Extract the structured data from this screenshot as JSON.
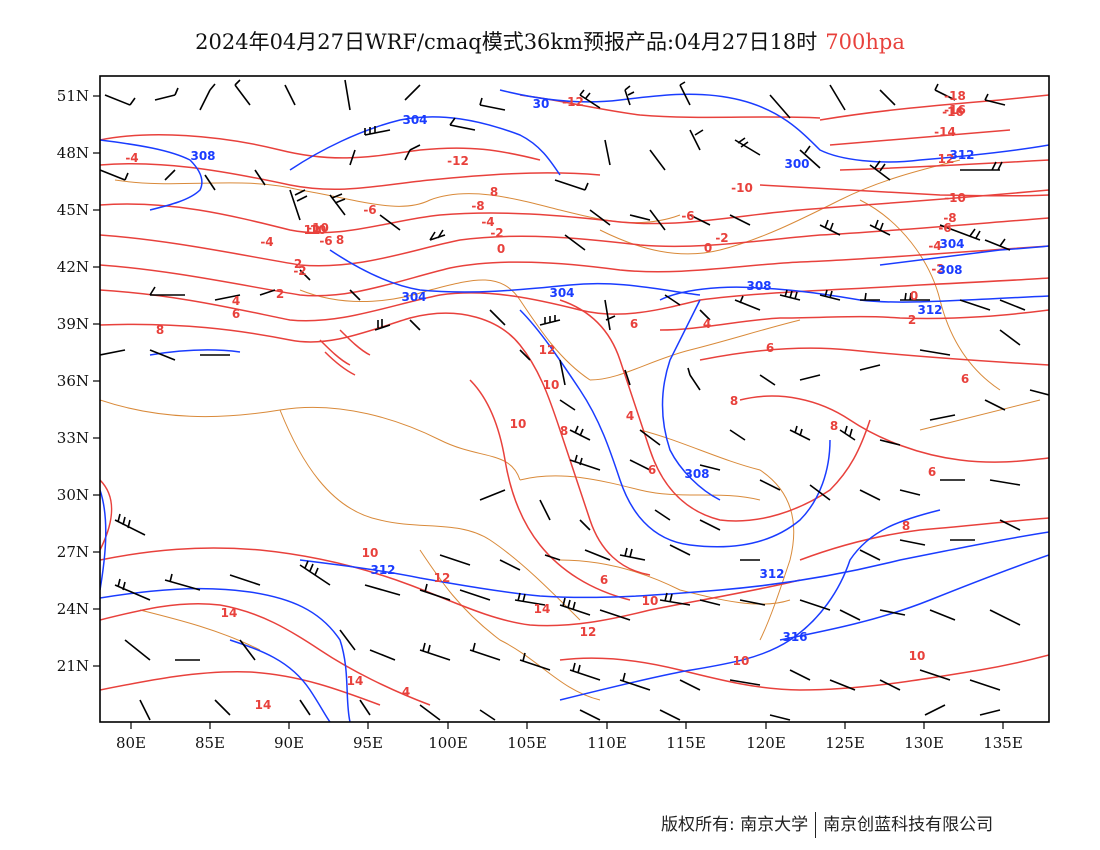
{
  "title": {
    "main": "2024年04月27日WRF/cmaq模式36km预报产品:04月27日18时",
    "level": "700hpa"
  },
  "map": {
    "lat_labels": [
      "51N",
      "48N",
      "45N",
      "42N",
      "39N",
      "36N",
      "33N",
      "30N",
      "27N",
      "24N",
      "21N"
    ],
    "lon_labels": [
      "80E",
      "85E",
      "90E",
      "95E",
      "100E",
      "105E",
      "110E",
      "115E",
      "120E",
      "125E",
      "130E",
      "135E"
    ],
    "temperature_labels": [
      "-4",
      "-12",
      "8",
      "-8",
      "-4",
      "-6",
      "-10",
      "-6",
      "8",
      "-2",
      "0",
      "-4",
      "-10",
      "-6",
      "-2",
      "0",
      "-2",
      "2",
      "2",
      "6",
      "4",
      "6",
      "8",
      "6",
      "10",
      "12",
      "10",
      "8",
      "10",
      "8",
      "4",
      "6",
      "6",
      "8",
      "6",
      "8",
      "10",
      "12",
      "10",
      "14",
      "12",
      "14",
      "12",
      "10",
      "10",
      "14",
      "4",
      "14",
      "-12",
      "-18",
      "-16",
      "-14",
      "12",
      "-10",
      "-8",
      "-6",
      "-4",
      "-2",
      "0",
      "2",
      "4",
      "-16",
      "6"
    ],
    "height_labels": [
      "308",
      "304",
      "304",
      "300",
      "304",
      "308",
      "312",
      "308",
      "312",
      "312",
      "316",
      "30",
      "304",
      "308",
      "312"
    ],
    "colors": {
      "temperature": "#e8413c",
      "height": "#1a3cff",
      "boundary": "#d98a3a",
      "wind": "#000000",
      "frame": "#000000"
    }
  },
  "footer": {
    "copyright": "版权所有: 南京大学",
    "company": "南京创蓝科技有限公司"
  }
}
